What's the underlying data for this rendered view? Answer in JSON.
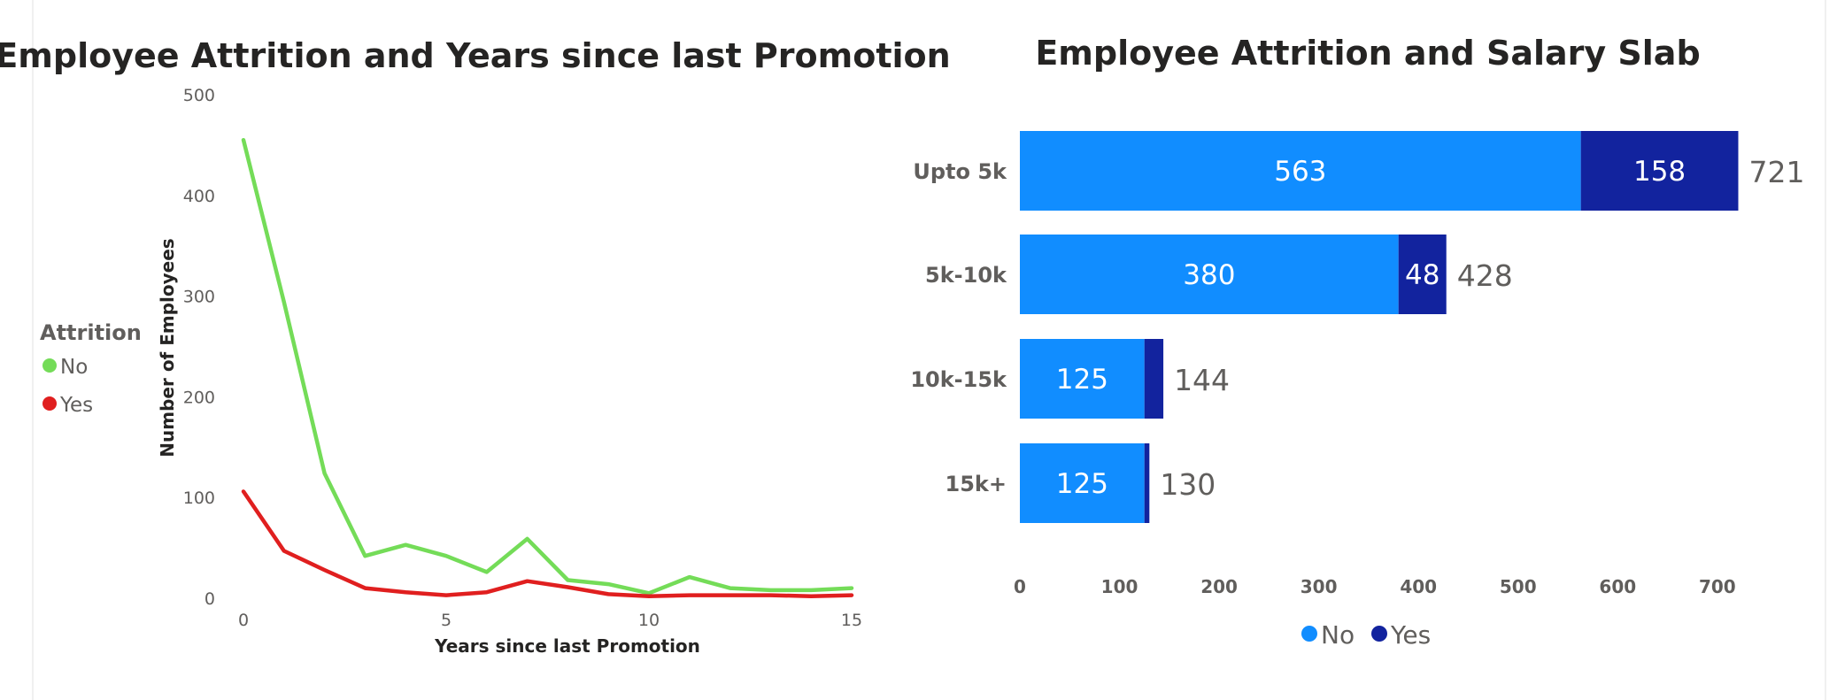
{
  "chart_data": [
    {
      "type": "line",
      "title": "Employee Attrition and Years since last Promotion",
      "xlabel": "Years since last Promotion",
      "ylabel": "Number of Employees",
      "x": [
        0,
        1,
        2,
        3,
        4,
        5,
        6,
        7,
        8,
        9,
        10,
        11,
        12,
        13,
        14,
        15
      ],
      "xticks": [
        0,
        5,
        10,
        15
      ],
      "yticks": [
        0,
        100,
        200,
        300,
        400,
        500
      ],
      "xlim": [
        0,
        15
      ],
      "ylim": [
        0,
        500
      ],
      "legend": {
        "title": "Attrition",
        "position": "left"
      },
      "series": [
        {
          "name": "No",
          "color": "#74dc58",
          "values": [
            455,
            294,
            124,
            42,
            53,
            42,
            26,
            59,
            18,
            14,
            5,
            21,
            10,
            8,
            8,
            10
          ]
        },
        {
          "name": "Yes",
          "color": "#e01f1f",
          "values": [
            106,
            47,
            28,
            10,
            6,
            3,
            6,
            17,
            11,
            4,
            2,
            3,
            3,
            3,
            2,
            3
          ]
        }
      ],
      "grid": false
    },
    {
      "type": "bar",
      "orientation": "horizontal",
      "stacked": true,
      "title": "Employee Attrition and Salary Slab",
      "categories": [
        "Upto 5k",
        "5k-10k",
        "10k-15k",
        "15k+"
      ],
      "xticks": [
        0,
        100,
        200,
        300,
        400,
        500,
        600,
        700
      ],
      "xlim": [
        0,
        700
      ],
      "legend": {
        "position": "bottom"
      },
      "series": [
        {
          "name": "No",
          "color": "#118dff",
          "values": [
            563,
            380,
            125,
            125
          ],
          "labels": [
            "563",
            "380",
            "125",
            "125"
          ]
        },
        {
          "name": "Yes",
          "color": "#12239e",
          "values": [
            158,
            48,
            19,
            5
          ],
          "labels": [
            "158",
            "48",
            "",
            ""
          ]
        }
      ],
      "totals": [
        721,
        428,
        144,
        130
      ],
      "grid": false
    }
  ]
}
